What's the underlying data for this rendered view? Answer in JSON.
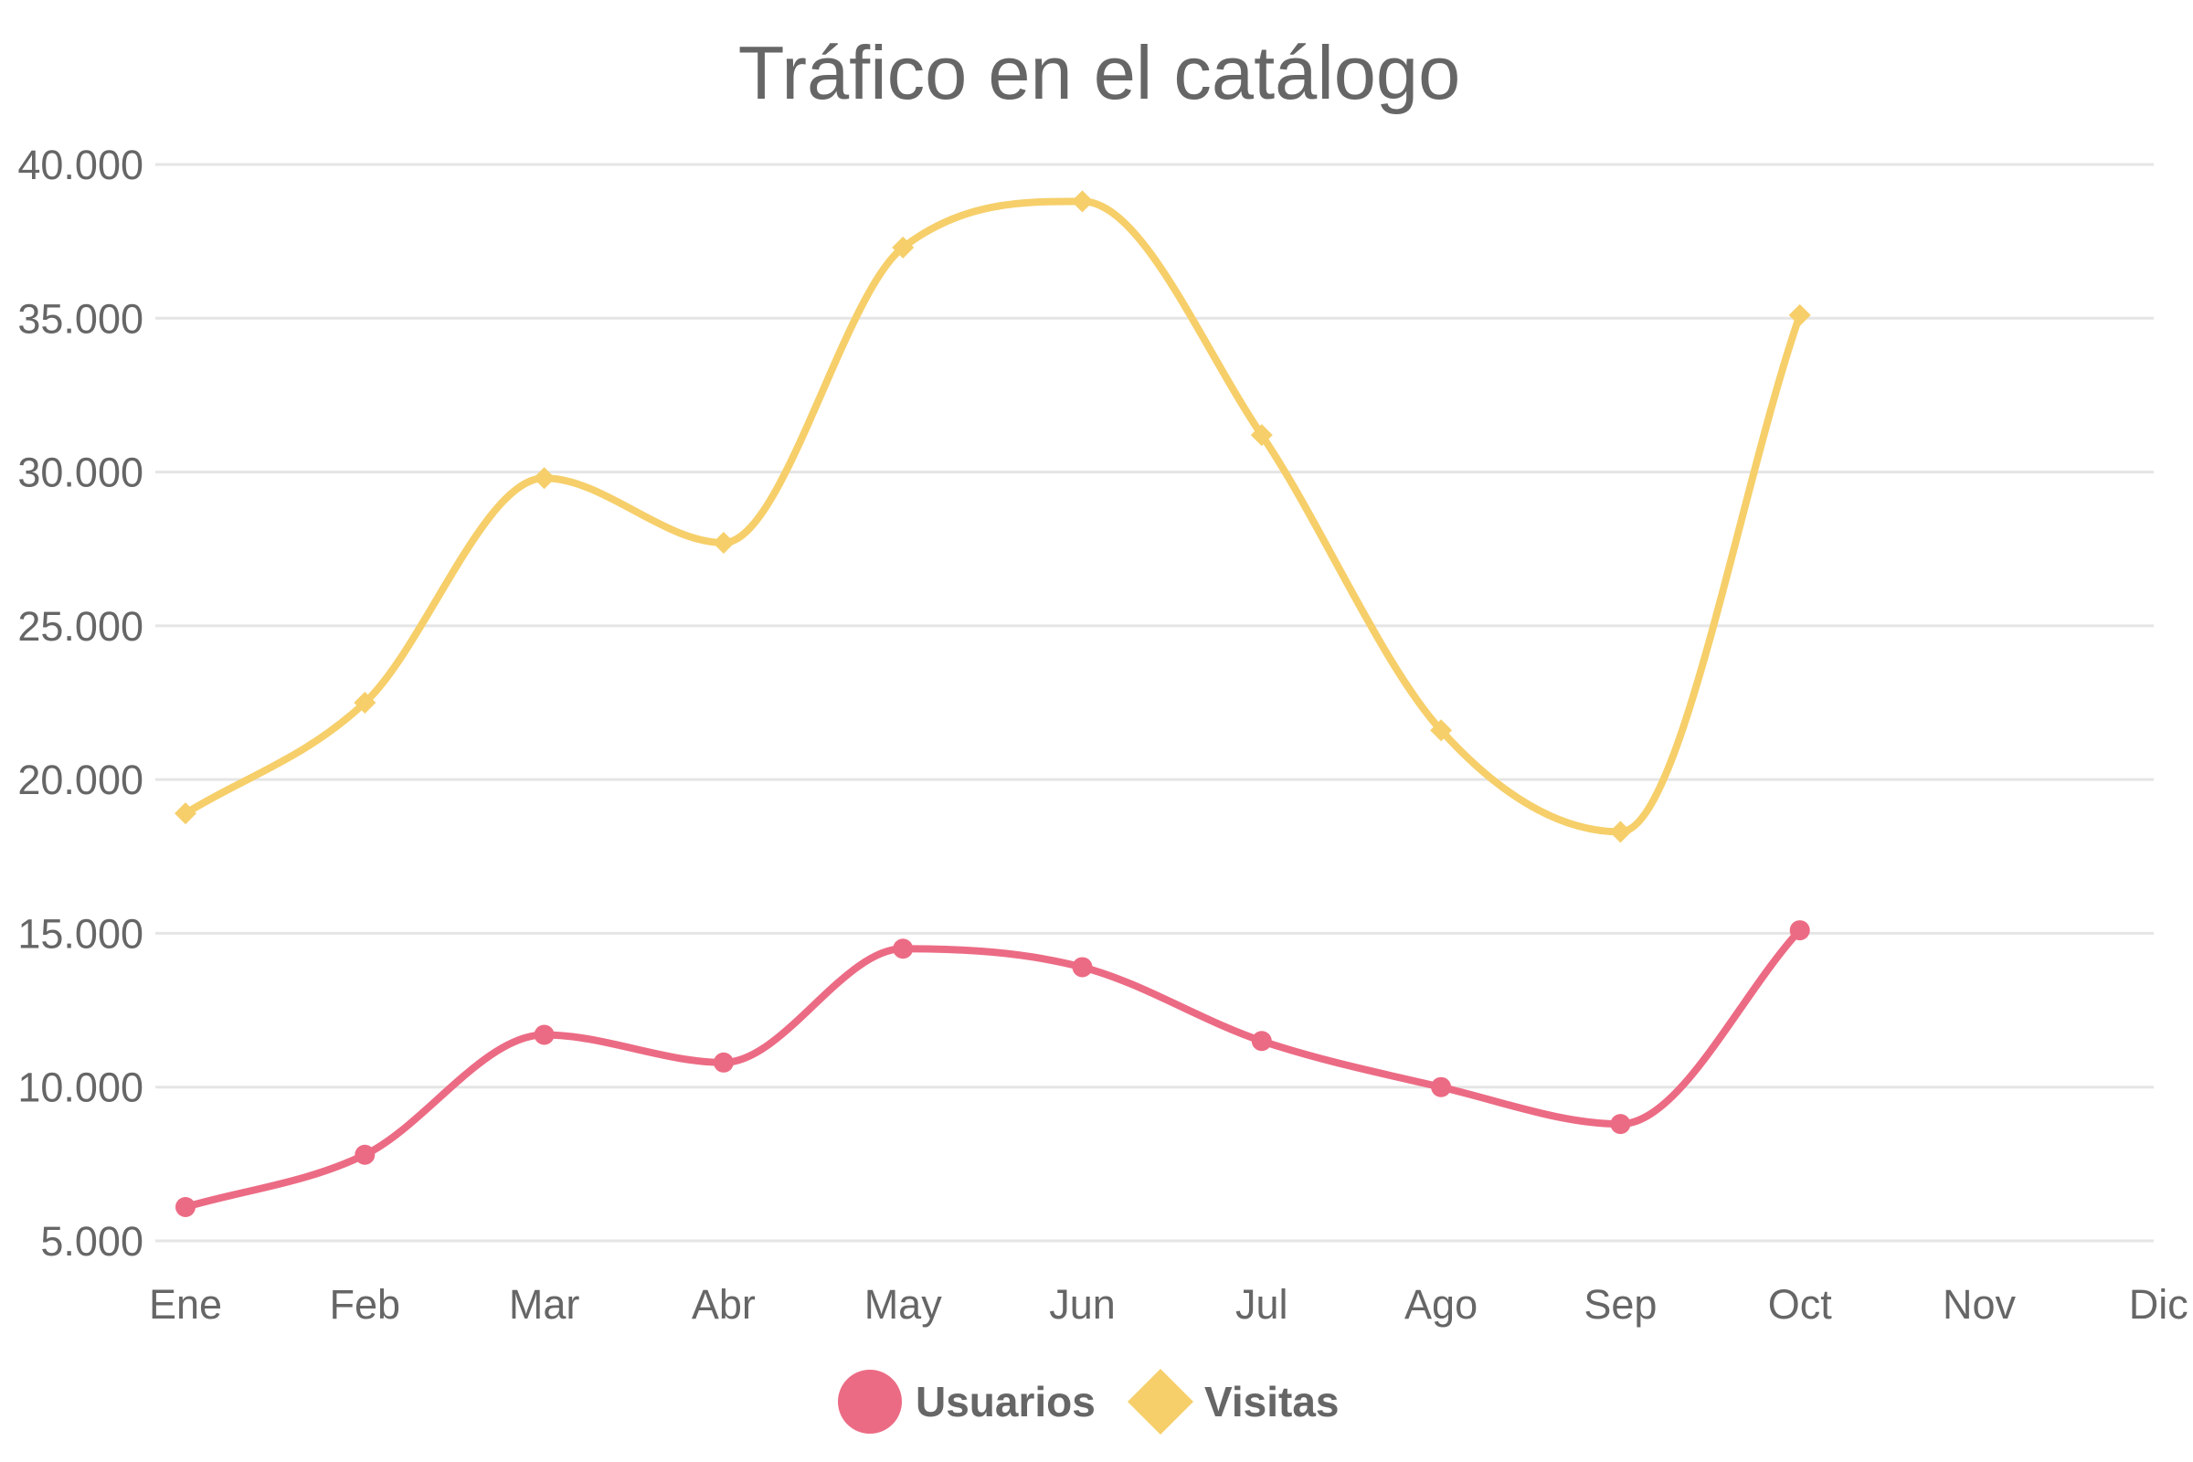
{
  "chart_data": {
    "type": "line",
    "title": "Tráfico en el catálogo",
    "xlabel": "",
    "ylabel": "",
    "categories": [
      "Ene",
      "Feb",
      "Mar",
      "Abr",
      "May",
      "Jun",
      "Jul",
      "Ago",
      "Sep",
      "Oct",
      "Nov",
      "Dic"
    ],
    "y_ticks": [
      "5.000",
      "10.000",
      "15.000",
      "20.000",
      "25.000",
      "30.000",
      "35.000",
      "40.000"
    ],
    "y_tick_values": [
      5000,
      10000,
      15000,
      20000,
      25000,
      30000,
      35000,
      40000
    ],
    "ylim": [
      5000,
      40000
    ],
    "grid": true,
    "curve": "smooth",
    "legend_position": "bottom-center",
    "series": [
      {
        "name": "Usuarios",
        "color": "#ec6b84",
        "marker": "circle",
        "values": [
          6100,
          7800,
          11700,
          10800,
          14500,
          13900,
          11500,
          10000,
          8800,
          15100,
          null,
          null
        ]
      },
      {
        "name": "Visitas",
        "color": "#f6cf6a",
        "marker": "diamond",
        "values": [
          18900,
          22500,
          29800,
          27700,
          37300,
          38800,
          31200,
          21600,
          18300,
          35100,
          null,
          null
        ]
      }
    ]
  }
}
